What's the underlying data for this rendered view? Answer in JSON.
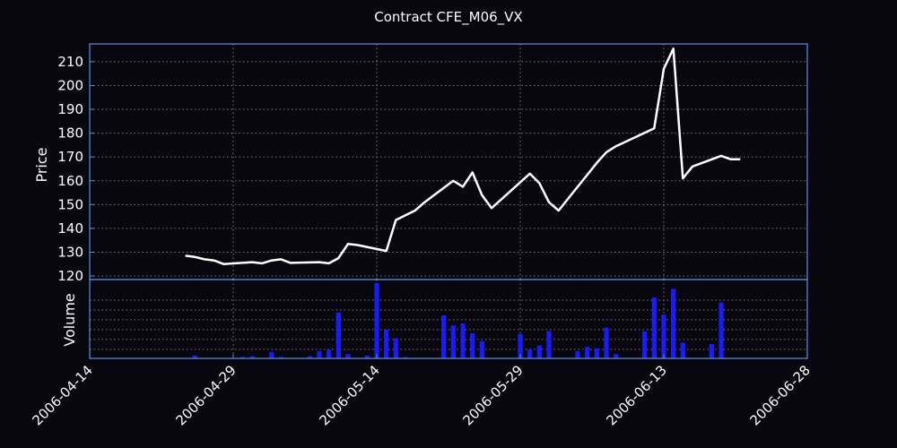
{
  "chart_data": {
    "type": "line",
    "title": "Contract CFE_M06_VX",
    "price_panel": {
      "ylabel": "Price",
      "ylim": [
        118.5,
        217.5
      ],
      "yticks": [
        120,
        130,
        140,
        150,
        160,
        170,
        180,
        190,
        200,
        210
      ],
      "series": [
        {
          "x": [
            "2006-04-24",
            "2006-04-25",
            "2006-04-26",
            "2006-04-27",
            "2006-04-28",
            "2006-05-01",
            "2006-05-02",
            "2006-05-03",
            "2006-05-04",
            "2006-05-05",
            "2006-05-08",
            "2006-05-09",
            "2006-05-10",
            "2006-05-11",
            "2006-05-12",
            "2006-05-15",
            "2006-05-16",
            "2006-05-17",
            "2006-05-18",
            "2006-05-19",
            "2006-05-22",
            "2006-05-23",
            "2006-05-24",
            "2006-05-25",
            "2006-05-26",
            "2006-05-30",
            "2006-05-31",
            "2006-06-01",
            "2006-06-02",
            "2006-06-05",
            "2006-06-06",
            "2006-06-07",
            "2006-06-08",
            "2006-06-12",
            "2006-06-13",
            "2006-06-14",
            "2006-06-15",
            "2006-06-16",
            "2006-06-19",
            "2006-06-20",
            "2006-06-21"
          ],
          "values": [
            128.5,
            128.0,
            127.0,
            126.5,
            125.0,
            125.8,
            125.3,
            126.5,
            127.0,
            125.5,
            125.8,
            125.3,
            127.5,
            133.5,
            133.0,
            130.5,
            143.5,
            145.5,
            147.5,
            151.0,
            160.0,
            157.5,
            163.5,
            154.0,
            148.5,
            163.0,
            159.0,
            151.0,
            147.5,
            162.5,
            167.5,
            172.0,
            174.5,
            182.0,
            207.0,
            215.5,
            161.0,
            166.0,
            170.5,
            169.0,
            169.0
          ]
        }
      ]
    },
    "volume_panel": {
      "ylabel": "Volume",
      "x": [
        "2006-04-25",
        "2006-04-30",
        "2006-05-01",
        "2006-05-03",
        "2006-05-04",
        "2006-05-07",
        "2006-05-08",
        "2006-05-09",
        "2006-05-10",
        "2006-05-11",
        "2006-05-13",
        "2006-05-14",
        "2006-05-15",
        "2006-05-16",
        "2006-05-17",
        "2006-05-21",
        "2006-05-22",
        "2006-05-23",
        "2006-05-24",
        "2006-05-25",
        "2006-05-29",
        "2006-05-30",
        "2006-05-31",
        "2006-06-01",
        "2006-06-04",
        "2006-06-05",
        "2006-06-06",
        "2006-06-07",
        "2006-06-08",
        "2006-06-11",
        "2006-06-12",
        "2006-06-13",
        "2006-06-14",
        "2006-06-15",
        "2006-06-18",
        "2006-06-19"
      ],
      "values": [
        4,
        2,
        3,
        9,
        2,
        3,
        10,
        12,
        64,
        6,
        4,
        105,
        40,
        28,
        2,
        60,
        46,
        49,
        35,
        24,
        34,
        12,
        18,
        38,
        10,
        16,
        14,
        43,
        6,
        38,
        85,
        61,
        97,
        22,
        20,
        78
      ]
    },
    "x_axis": {
      "type": "date",
      "xlim": [
        "2006-04-14",
        "2006-06-28"
      ],
      "tick_labels": [
        "2006-04-14",
        "2006-04-29",
        "2006-05-14",
        "2006-05-29",
        "2006-06-13",
        "2006-06-28"
      ]
    },
    "grid": true,
    "colors": {
      "background": "#08060f",
      "price_line": "#ffffff",
      "volume_bars": "#1a1aff",
      "frame": "#5b8fe0",
      "text": "#ffffff"
    }
  }
}
